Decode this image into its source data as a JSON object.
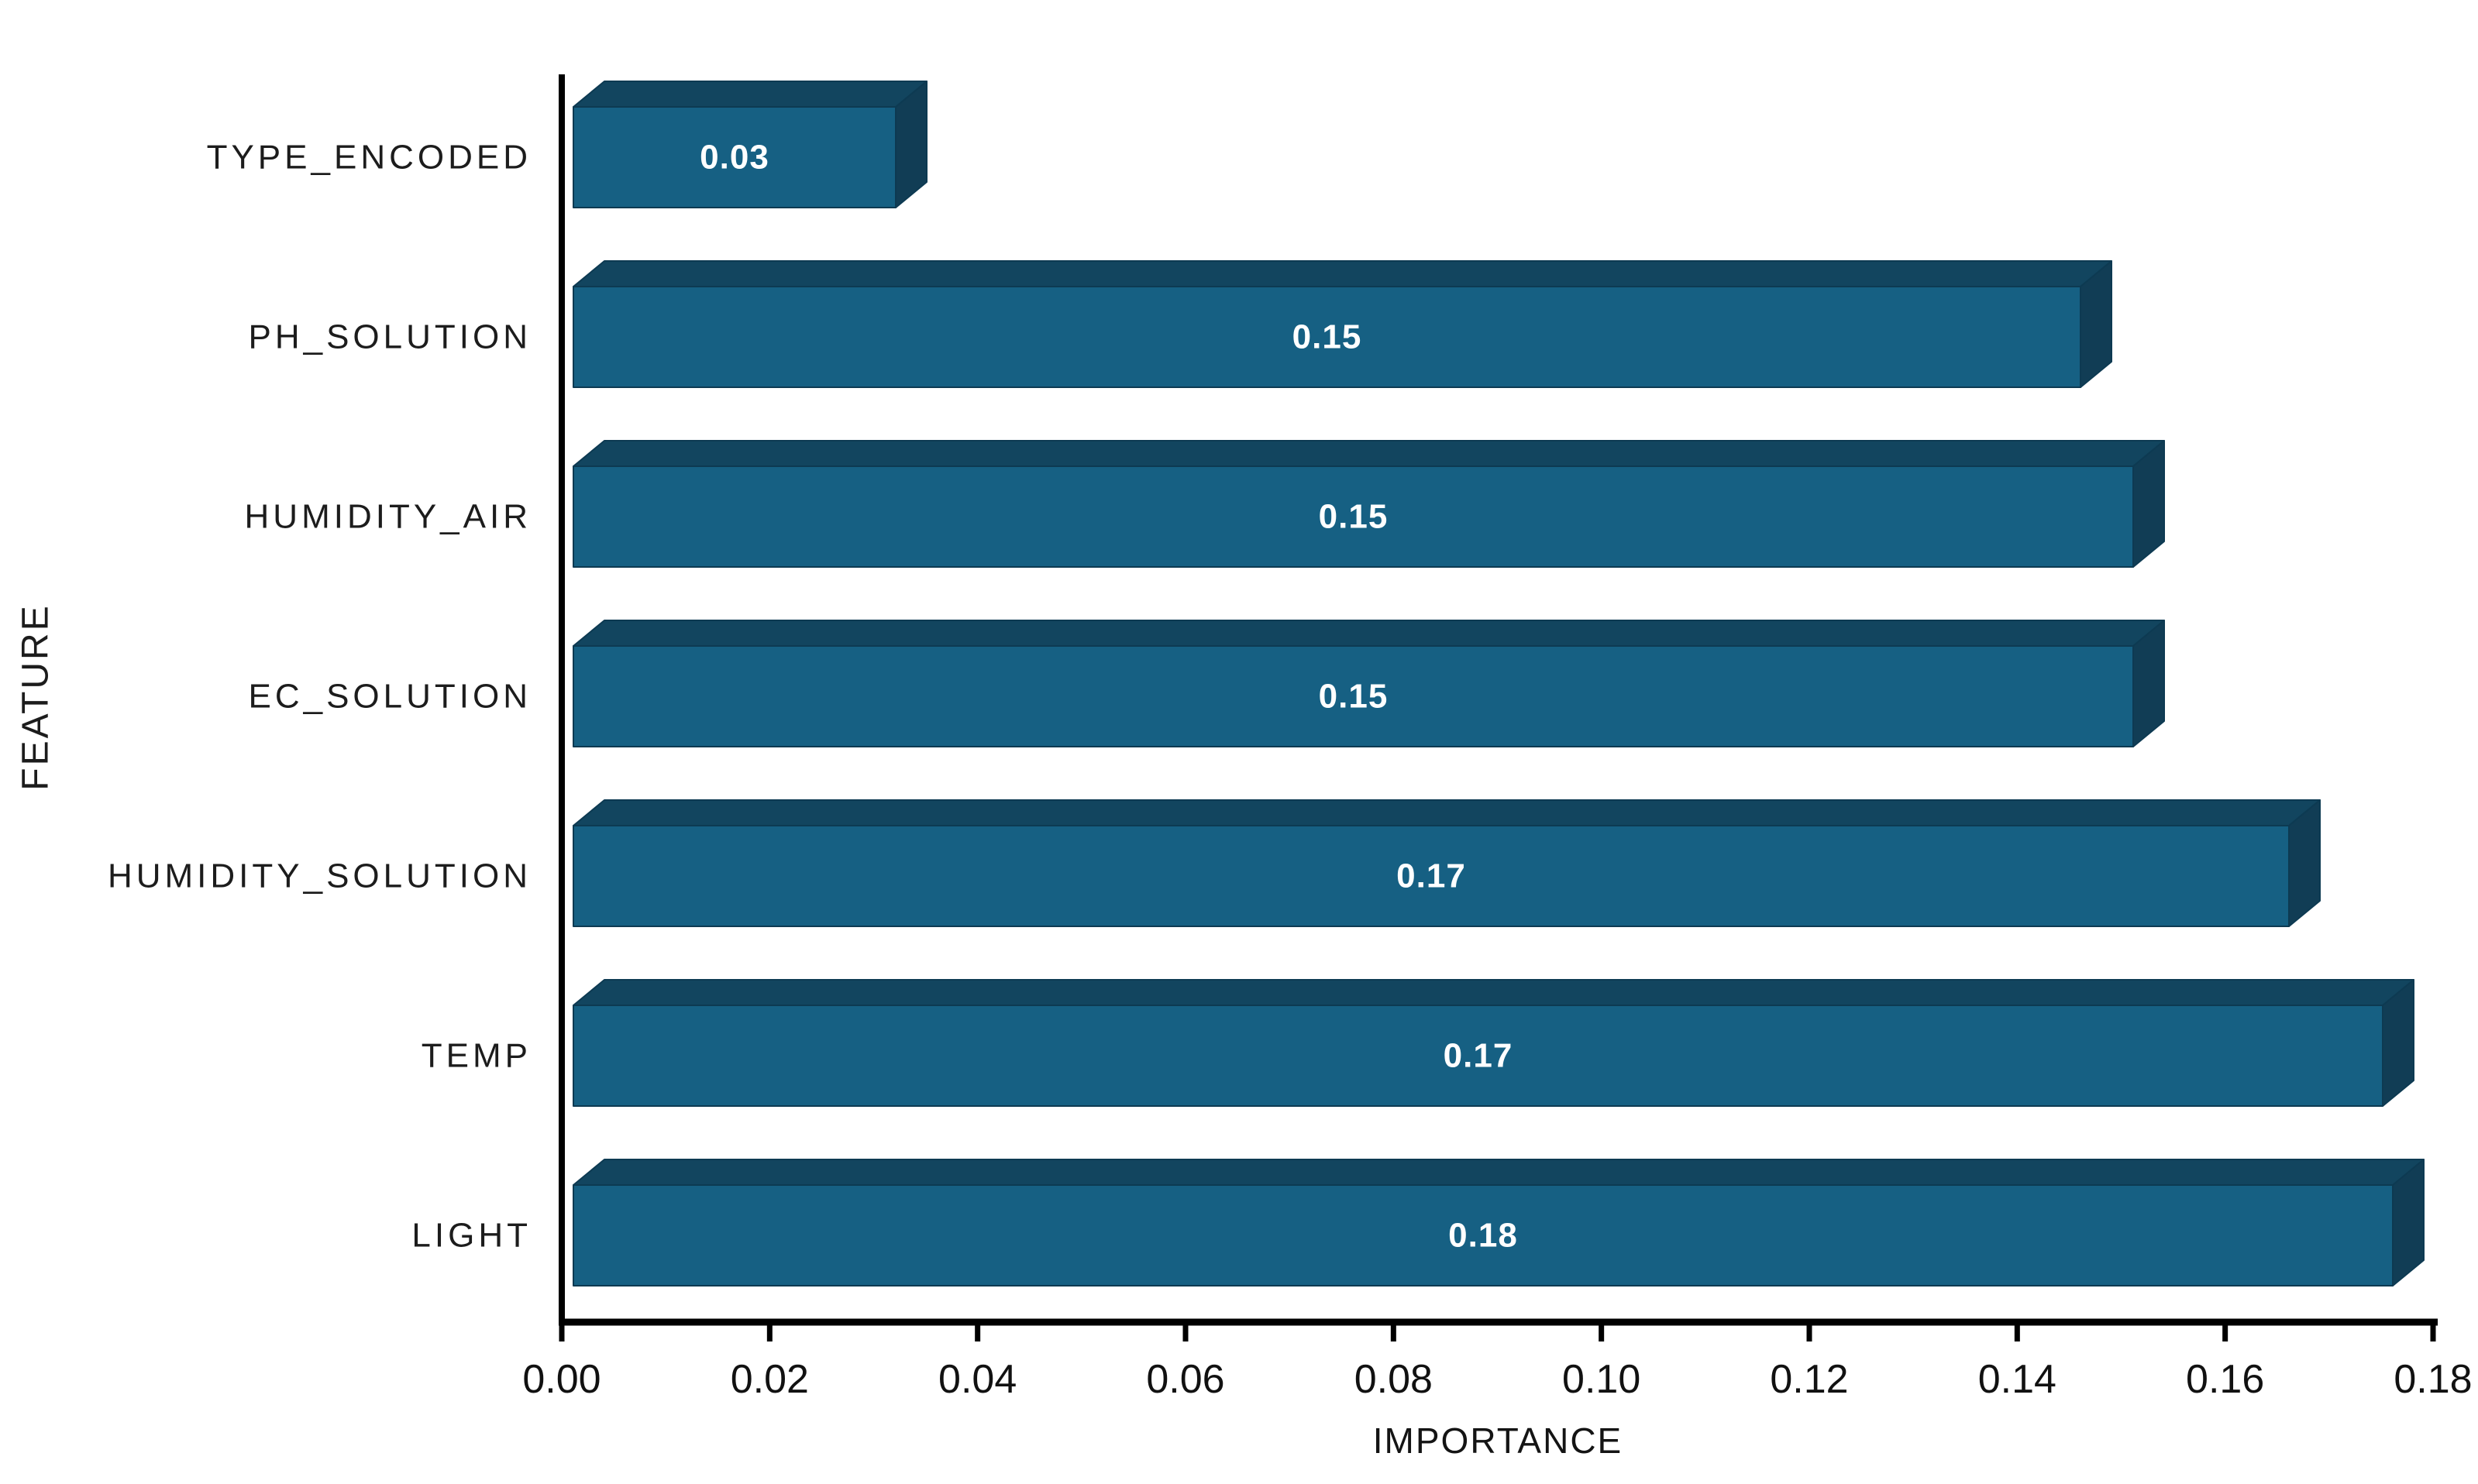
{
  "chart_data": {
    "type": "bar",
    "orientation": "horizontal",
    "style": "3d-block-bars",
    "title": "",
    "xlabel": "IMPORTANCE",
    "ylabel": "FEATURE",
    "categories": [
      "TYPE_ENCODED",
      "PH_SOLUTION",
      "HUMIDITY_AIR",
      "EC_SOLUTION",
      "HUMIDITY_SOLUTION",
      "TEMP",
      "LIGHT"
    ],
    "values": [
      0.03,
      0.15,
      0.15,
      0.15,
      0.17,
      0.17,
      0.18
    ],
    "value_labels": [
      "0.03",
      "0.15",
      "0.15",
      "0.15",
      "0.17",
      "0.17",
      "0.18"
    ],
    "bar_lengths_est": [
      0.031,
      0.145,
      0.15,
      0.15,
      0.165,
      0.174,
      0.175
    ],
    "xlim": [
      0,
      0.18
    ],
    "xticks": [
      "0.00",
      "0.02",
      "0.04",
      "0.06",
      "0.08",
      "0.10",
      "0.12",
      "0.14",
      "0.16",
      "0.18"
    ],
    "grid": false,
    "legend_position": "none",
    "colors": {
      "bar_front": "#166083",
      "bar_top": "#12455F",
      "bar_side": "#113D55",
      "bar_edge": "#0D3A52",
      "value_label": "#FFFFFF",
      "axis": "#000000",
      "tick_label": "#111111",
      "category_label": "#1C1C1C",
      "background": "#FFFFFF"
    }
  }
}
